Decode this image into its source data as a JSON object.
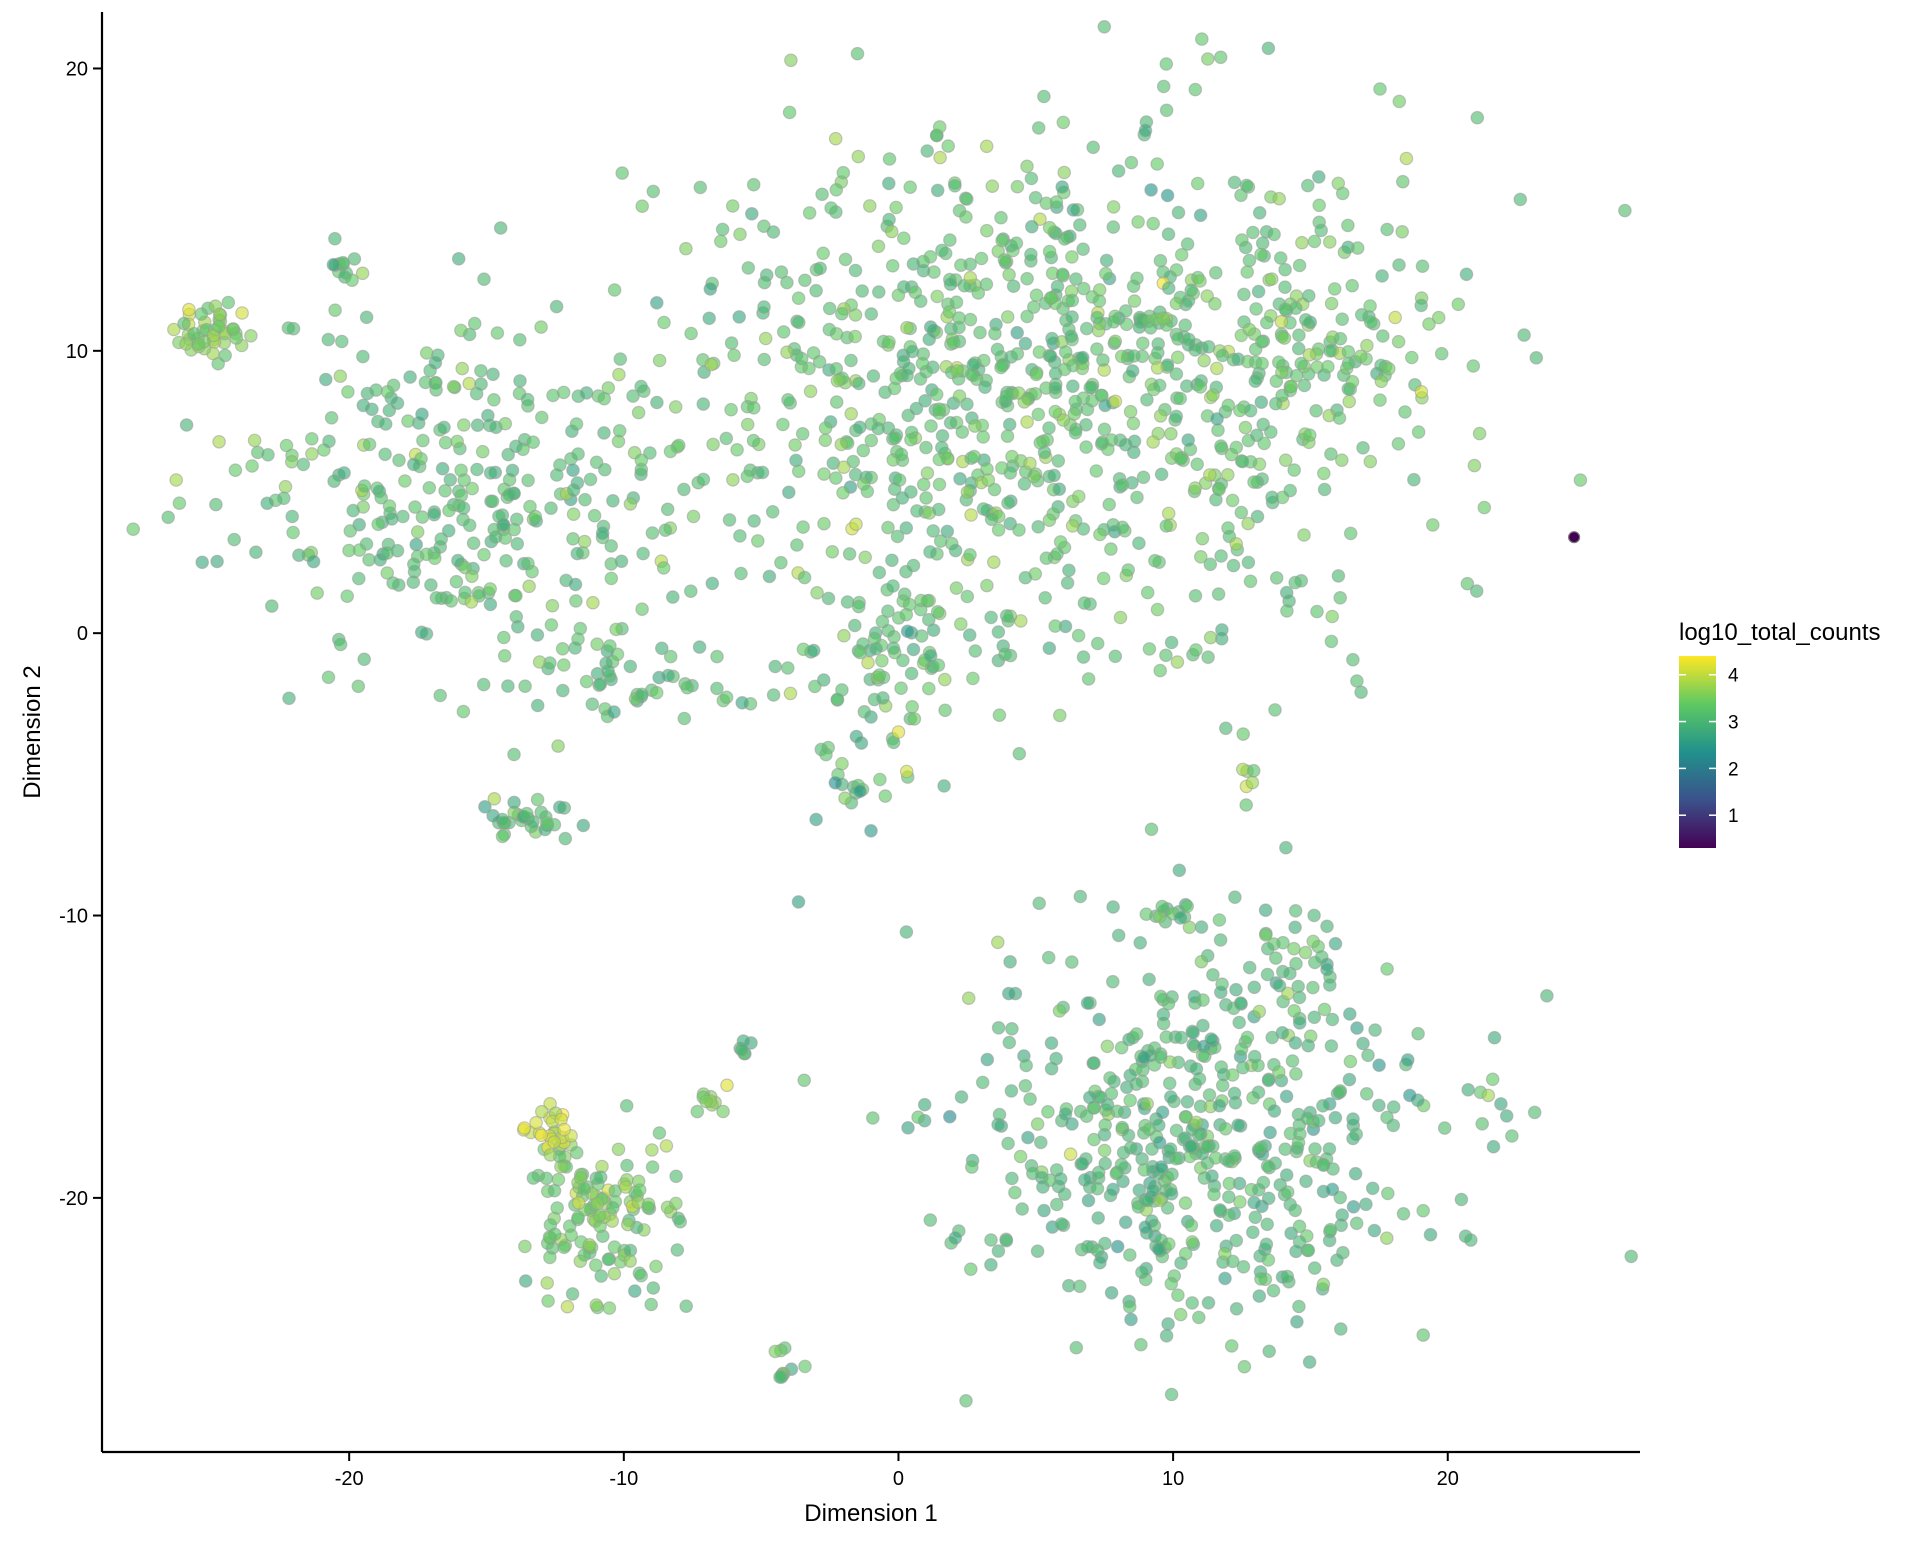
{
  "chart_data": {
    "type": "scatter",
    "title": "",
    "xlabel": "Dimension 1",
    "ylabel": "Dimension 2",
    "xlim": [
      -29,
      27
    ],
    "ylim": [
      -29,
      22
    ],
    "xticks": [
      -20,
      -10,
      0,
      10,
      20
    ],
    "yticks": [
      20,
      10,
      0,
      -10,
      -20
    ],
    "grid": false,
    "legend": {
      "title": "log10_total_counts",
      "placement": "right",
      "ticks": [
        4,
        3,
        2,
        1
      ],
      "range": [
        0.3,
        4.4
      ],
      "colors": [
        "#440154",
        "#3b528b",
        "#21918c",
        "#5ec962",
        "#fde725"
      ]
    },
    "clusters": [
      {
        "name": "upper-left",
        "cx": -16,
        "cy": 5,
        "sx": 4.2,
        "sy": 3.2,
        "n": 330,
        "cval": 3.15
      },
      {
        "name": "upper-left-tail",
        "cx": -24.8,
        "cy": 10.5,
        "sx": 0.8,
        "sy": 0.6,
        "n": 45,
        "cval": 3.55
      },
      {
        "name": "upper-left-arm",
        "cx": -20,
        "cy": 12.8,
        "sx": 0.6,
        "sy": 0.3,
        "n": 10,
        "cval": 3.2
      },
      {
        "name": "bridge",
        "cx": -9.5,
        "cy": -1.8,
        "sx": 2.2,
        "sy": 1.2,
        "n": 45,
        "cval": 3.1
      },
      {
        "name": "small-left",
        "cx": -13.2,
        "cy": -6.5,
        "sx": 0.9,
        "sy": 0.4,
        "n": 32,
        "cval": 3.05
      },
      {
        "name": "upper-main",
        "cx": 5,
        "cy": 8.5,
        "sx": 6.8,
        "sy": 4.6,
        "n": 980,
        "cval": 3.2
      },
      {
        "name": "upper-main-right",
        "cx": 15,
        "cy": 10.5,
        "sx": 1.8,
        "sy": 2.6,
        "n": 90,
        "cval": 3.3
      },
      {
        "name": "upper-main-low",
        "cx": 0,
        "cy": -1,
        "sx": 1.8,
        "sy": 1.6,
        "n": 70,
        "cval": 3.1
      },
      {
        "name": "tail-down",
        "cx": -1.5,
        "cy": -4.8,
        "sx": 0.7,
        "sy": 0.9,
        "n": 16,
        "cval": 3.2
      },
      {
        "name": "lower-right",
        "cx": 11,
        "cy": -17.5,
        "sx": 4.2,
        "sy": 3.4,
        "n": 560,
        "cval": 3.0
      },
      {
        "name": "lower-right-top",
        "cx": 14.5,
        "cy": -11.5,
        "sx": 1.0,
        "sy": 0.6,
        "n": 20,
        "cval": 3.05
      },
      {
        "name": "small-mid",
        "cx": 10.2,
        "cy": -9.9,
        "sx": 0.6,
        "sy": 0.2,
        "n": 12,
        "cval": 3.1
      },
      {
        "name": "lower-left",
        "cx": -11,
        "cy": -20.5,
        "sx": 1.4,
        "sy": 1.6,
        "n": 135,
        "cval": 3.35
      },
      {
        "name": "lower-left-yellow",
        "cx": -12.6,
        "cy": -17.6,
        "sx": 0.5,
        "sy": 0.4,
        "n": 24,
        "cval": 4.0
      },
      {
        "name": "stripe-mid",
        "cx": -6.8,
        "cy": -16.7,
        "sx": 0.3,
        "sy": 0.3,
        "n": 10,
        "cval": 3.5
      },
      {
        "name": "stripe-bottom",
        "cx": -4.2,
        "cy": -26,
        "sx": 0.3,
        "sy": 0.5,
        "n": 10,
        "cval": 3.1
      },
      {
        "name": "stripe-center",
        "cx": -5.6,
        "cy": -14.8,
        "sx": 0.1,
        "sy": 0.2,
        "n": 6,
        "cval": 3.0
      },
      {
        "name": "right-small",
        "cx": 12.8,
        "cy": -5.2,
        "sx": 0.2,
        "sy": 0.4,
        "n": 6,
        "cval": 3.5
      }
    ],
    "points": [
      {
        "x": 24.6,
        "y": 3.4,
        "c": 0.3
      },
      {
        "x": 9.8,
        "y": 15.5,
        "c": 2.4
      },
      {
        "x": 9.2,
        "y": 15.7,
        "c": 2.4
      },
      {
        "x": -2.3,
        "y": -5.3,
        "c": 2.3
      },
      {
        "x": -1.4,
        "y": -5.6,
        "c": 2.4
      },
      {
        "x": -1.0,
        "y": -7.0,
        "c": 2.5
      },
      {
        "x": -3.0,
        "y": -6.6,
        "c": 2.6
      },
      {
        "x": 15.8,
        "y": -19.7,
        "c": 2.5
      },
      {
        "x": 17.5,
        "y": -15.3,
        "c": 2.4
      },
      {
        "x": -9.6,
        "y": -23.3,
        "c": 2.7
      },
      {
        "x": -8.8,
        "y": 11.7,
        "c": 2.6
      },
      {
        "x": -5.8,
        "y": 11.2,
        "c": 2.7
      },
      {
        "x": 0.3,
        "y": -4.9,
        "c": 4.1
      },
      {
        "x": 0.0,
        "y": -3.5,
        "c": 4.2
      },
      {
        "x": 11.0,
        "y": 14.8,
        "c": 2.6
      }
    ]
  }
}
